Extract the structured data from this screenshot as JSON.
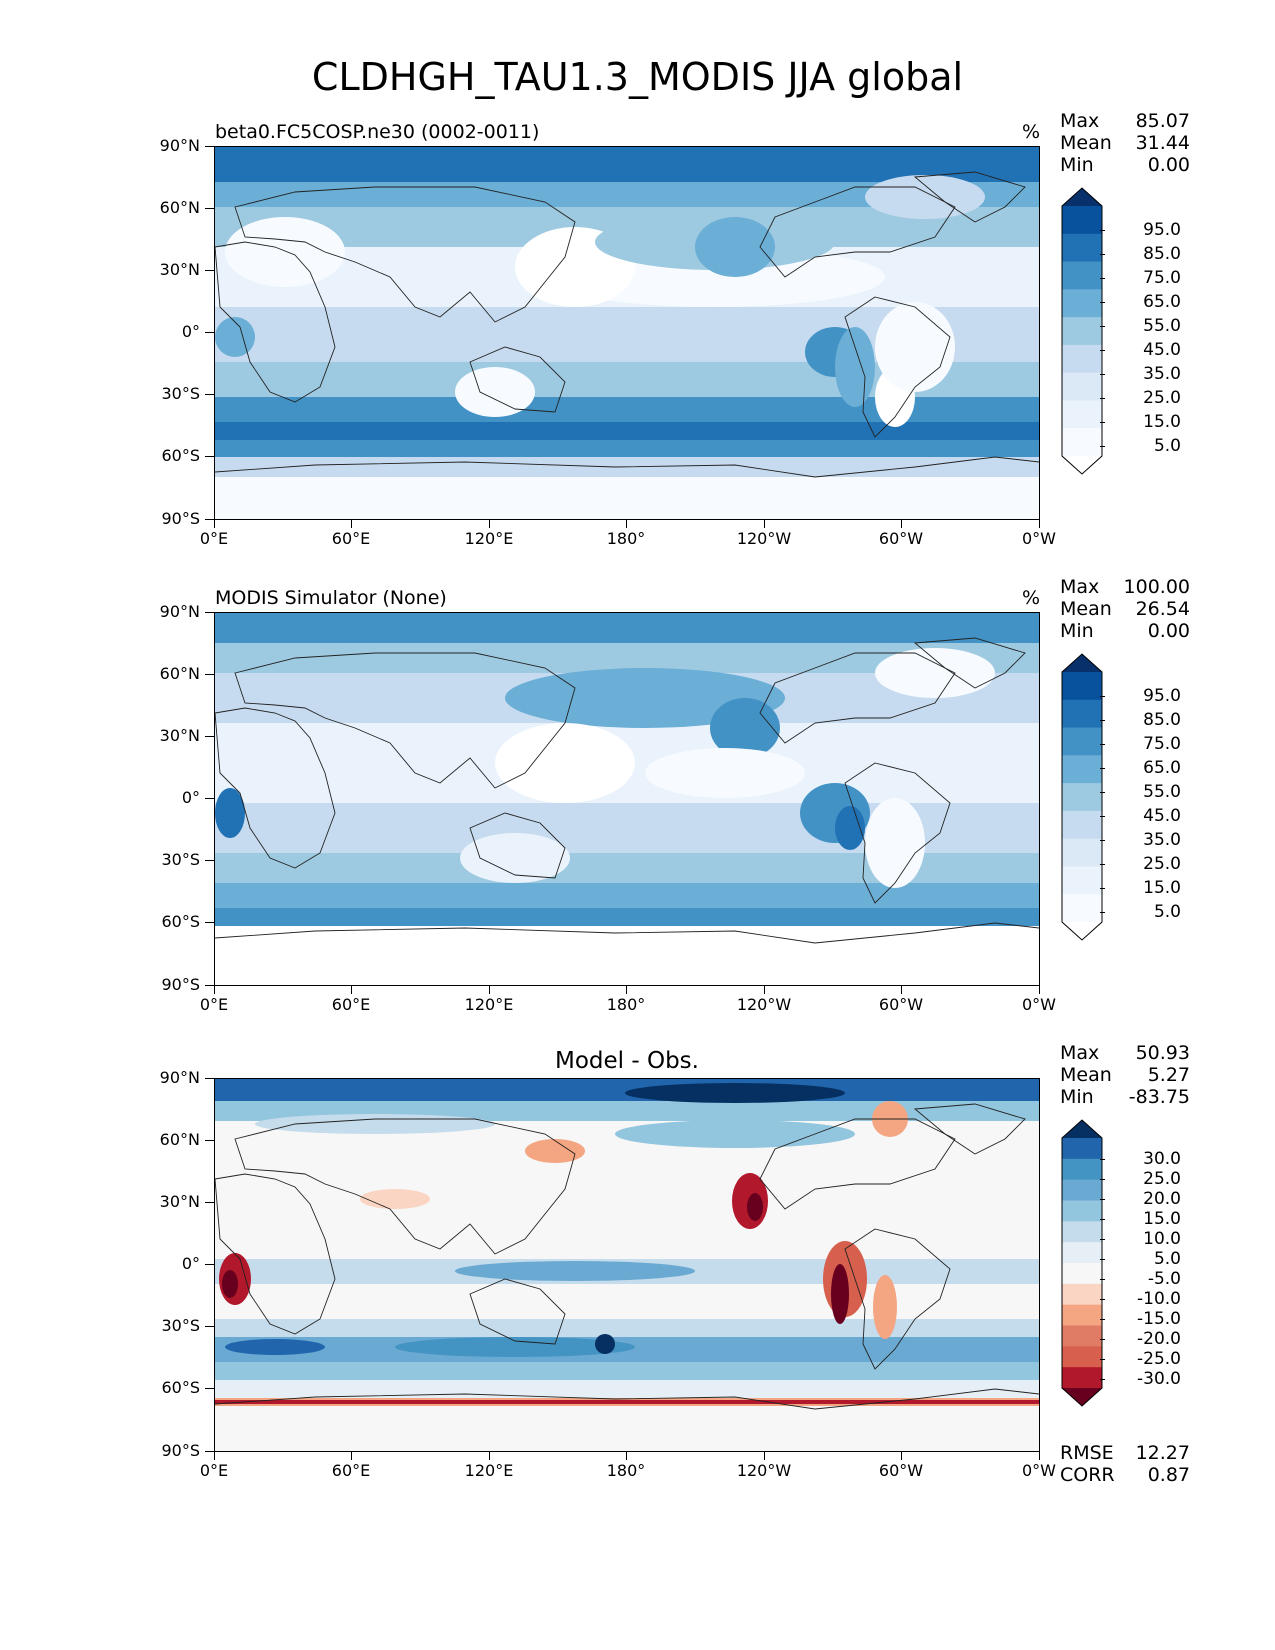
{
  "title": "CLDHGH_TAU1.3_MODIS JJA global",
  "lat_labels": [
    "90°N",
    "60°N",
    "30°N",
    "0°",
    "30°S",
    "60°S",
    "90°S"
  ],
  "lon_labels": [
    "0°E",
    "60°E",
    "120°E",
    "180°",
    "120°W",
    "60°W",
    "0°W"
  ],
  "panels": [
    {
      "title_left": "beta0.FC5COSP.ne30 (0002-0011)",
      "title_center": "",
      "units": "%",
      "stats": [
        {
          "label": "Max",
          "value": "85.07"
        },
        {
          "label": "Mean",
          "value": "31.44"
        },
        {
          "label": "Min",
          "value": "0.00"
        }
      ],
      "colorbar": {
        "labels": [
          "95.0",
          "85.0",
          "75.0",
          "65.0",
          "55.0",
          "45.0",
          "35.0",
          "25.0",
          "15.0",
          "5.0"
        ],
        "colors": [
          "#08306b",
          "#08519c",
          "#2171b5",
          "#4292c6",
          "#6baed6",
          "#9ecae1",
          "#c6dbef",
          "#dbe9f6",
          "#eaf3fb",
          "#f7fbff",
          "#ffffff"
        ]
      }
    },
    {
      "title_left": "MODIS Simulator (None)",
      "title_center": "",
      "units": "%",
      "stats": [
        {
          "label": "Max",
          "value": "100.00"
        },
        {
          "label": "Mean",
          "value": "26.54"
        },
        {
          "label": "Min",
          "value": "0.00"
        }
      ],
      "colorbar": {
        "labels": [
          "95.0",
          "85.0",
          "75.0",
          "65.0",
          "55.0",
          "45.0",
          "35.0",
          "25.0",
          "15.0",
          "5.0"
        ],
        "colors": [
          "#08306b",
          "#08519c",
          "#2171b5",
          "#4292c6",
          "#6baed6",
          "#9ecae1",
          "#c6dbef",
          "#dbe9f6",
          "#eaf3fb",
          "#f7fbff",
          "#ffffff"
        ]
      }
    },
    {
      "title_left": "",
      "title_center": "Model - Obs.",
      "units": "",
      "stats": [
        {
          "label": "Max",
          "value": "50.93"
        },
        {
          "label": "Mean",
          "value": "5.27"
        },
        {
          "label": "Min",
          "value": "-83.75"
        }
      ],
      "colorbar": {
        "labels": [
          "30.0",
          "25.0",
          "20.0",
          "15.0",
          "10.0",
          "5.0",
          "-5.0",
          "-10.0",
          "-15.0",
          "-20.0",
          "-25.0",
          "-30.0"
        ],
        "colors": [
          "#053061",
          "#2166ac",
          "#4393c3",
          "#6aa9d2",
          "#92c5de",
          "#c5dcec",
          "#e6eff6",
          "#f7f7f7",
          "#fbd5c3",
          "#f4a582",
          "#e07b66",
          "#d6604d",
          "#b2182b",
          "#67001f"
        ]
      },
      "metrics": [
        {
          "label": "RMSE",
          "value": "12.27"
        },
        {
          "label": "CORR",
          "value": "0.87"
        }
      ]
    }
  ]
}
